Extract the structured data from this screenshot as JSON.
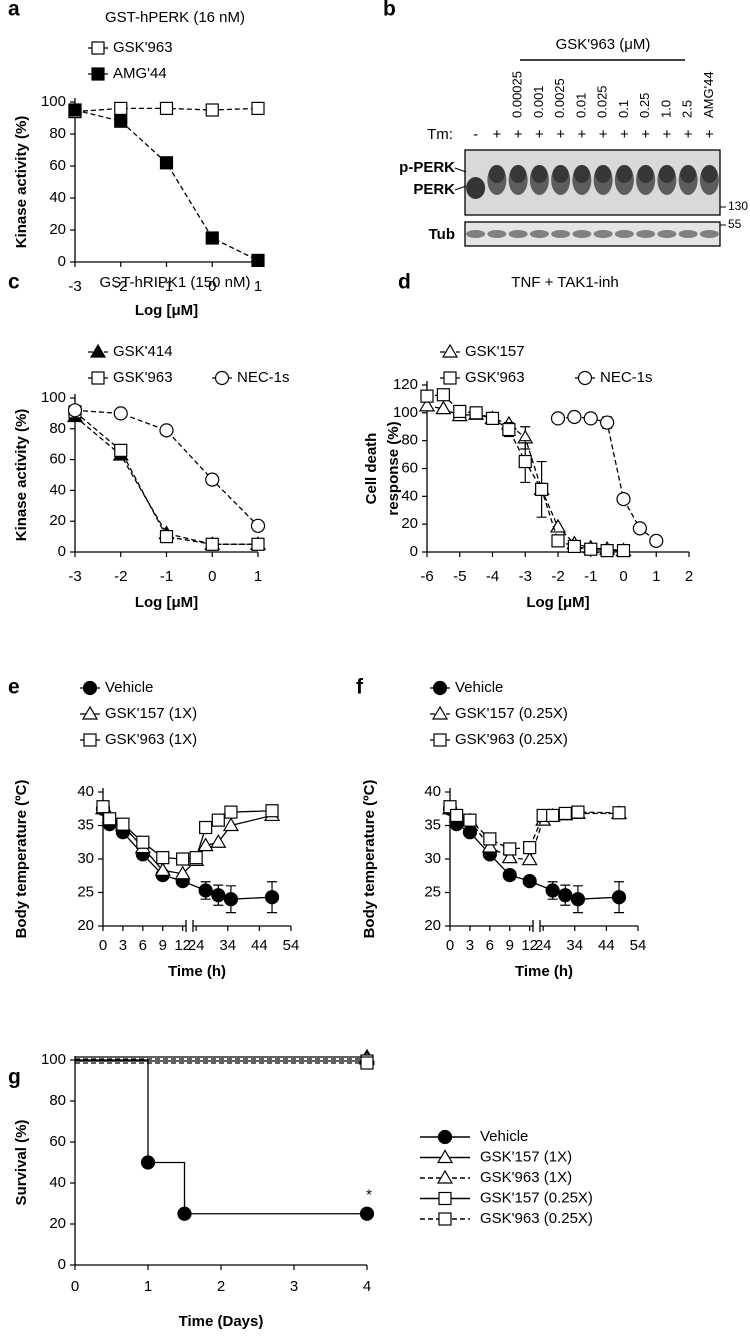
{
  "chart_data": [
    {
      "type": "line",
      "panel": "a",
      "title": "GST-hPERK (16 nM)",
      "xlabel": "Log [μM]",
      "ylabel": [
        "Kinase activity (%)"
      ],
      "xlim": [
        -3,
        1
      ],
      "xticks": [
        -3,
        -2,
        -1,
        0,
        1
      ],
      "ylim": [
        0,
        100
      ],
      "yticks": [
        0,
        20,
        40,
        60,
        80,
        100
      ],
      "series": [
        {
          "name": "GSK'963",
          "marker": "square-open",
          "dash": true,
          "color": "#000000",
          "x": [
            -3,
            -2,
            -1,
            0,
            1
          ],
          "values": [
            94,
            96,
            96,
            95,
            96
          ]
        },
        {
          "name": "AMG'44",
          "marker": "square-filled",
          "dash": true,
          "color": "#000000",
          "x": [
            -3,
            -2,
            -1,
            0,
            1
          ],
          "values": [
            95,
            88,
            62,
            15,
            1
          ]
        }
      ]
    },
    {
      "type": "line",
      "panel": "c",
      "title": "GST-hRIPK1 (150 nM)",
      "xlabel": "Log [μM]",
      "ylabel": [
        "Kinase activity (%)"
      ],
      "xlim": [
        -3,
        1
      ],
      "xticks": [
        -3,
        -2,
        -1,
        0,
        1
      ],
      "ylim": [
        0,
        100
      ],
      "yticks": [
        0,
        20,
        40,
        60,
        80,
        100
      ],
      "series": [
        {
          "name": "GSK'414",
          "marker": "triangle-filled",
          "dash": true,
          "color": "#000000",
          "x": [
            -3,
            -2,
            -1,
            0,
            1
          ],
          "values": [
            88,
            63,
            12,
            5,
            5
          ]
        },
        {
          "name": "GSK'963",
          "marker": "square-open",
          "dash": true,
          "color": "#000000",
          "x": [
            -3,
            -2,
            -1,
            0,
            1
          ],
          "values": [
            91,
            66,
            10,
            5,
            5
          ]
        },
        {
          "name": "NEC-1s",
          "marker": "circle-open",
          "dash": true,
          "color": "#000000",
          "x": [
            -3,
            -2,
            -1,
            0,
            1
          ],
          "values": [
            92,
            90,
            79,
            47,
            17
          ]
        }
      ]
    },
    {
      "type": "line",
      "panel": "d",
      "title": "TNF + TAK1-inh",
      "xlabel": "Log [μM]",
      "ylabel": [
        "Cell death",
        "response (%)"
      ],
      "xlim": [
        -6,
        2
      ],
      "xticks": [
        -6,
        -5,
        -4,
        -3,
        -2,
        -1,
        0,
        1,
        2
      ],
      "ylim": [
        0,
        120
      ],
      "yticks": [
        0,
        20,
        40,
        60,
        80,
        100,
        120
      ],
      "series": [
        {
          "name": "GSK'157",
          "marker": "triangle-open",
          "dash": true,
          "color": "#000000",
          "x": [
            -6,
            -5.5,
            -5,
            -4.5,
            -4,
            -3.5,
            -3,
            -2.5,
            -2,
            -1.5,
            -1,
            -0.5,
            0
          ],
          "values": [
            105,
            103,
            98,
            99,
            96,
            92,
            82,
            45,
            18,
            6,
            3,
            2,
            1
          ],
          "errors": [
            null,
            null,
            null,
            null,
            null,
            null,
            8,
            null,
            null,
            null,
            null,
            null,
            null
          ]
        },
        {
          "name": "GSK'963",
          "marker": "square-open",
          "dash": true,
          "color": "#000000",
          "x": [
            -6,
            -5.5,
            -5,
            -4.5,
            -4,
            -3.5,
            -3,
            -2.5,
            -2,
            -1.5,
            -1,
            -0.5,
            0
          ],
          "values": [
            112,
            113,
            101,
            100,
            96,
            88,
            65,
            45,
            8,
            4,
            2,
            1,
            1
          ],
          "errors": [
            null,
            null,
            null,
            null,
            null,
            5,
            15,
            20,
            null,
            null,
            null,
            null,
            null
          ]
        },
        {
          "name": "NEC-1s",
          "marker": "circle-open",
          "dash": true,
          "color": "#000000",
          "x": [
            -2,
            -1.5,
            -1,
            -0.5,
            0,
            0.5,
            1
          ],
          "values": [
            96,
            97,
            96,
            93,
            38,
            17,
            8
          ],
          "errors": [
            null,
            null,
            null,
            4,
            null,
            null,
            null
          ]
        }
      ]
    },
    {
      "type": "line",
      "panel": "e",
      "xlabel": "Time (h)",
      "ylabel": [
        "Body temperature (ºC)"
      ],
      "xlim": [
        0,
        54
      ],
      "xbreak": [
        12.5,
        23
      ],
      "xticks": [
        0,
        3,
        6,
        9,
        12,
        24,
        34,
        44,
        54
      ],
      "ylim": [
        20,
        40
      ],
      "yticks": [
        20,
        25,
        30,
        35,
        40
      ],
      "series": [
        {
          "name": "Vehicle",
          "marker": "circle-filled",
          "dash": false,
          "color": "#000000",
          "x": [
            0,
            1,
            3,
            6,
            9,
            12,
            27,
            31,
            35,
            48
          ],
          "values": [
            37.5,
            35.2,
            34,
            30.7,
            27.6,
            26.7,
            25.3,
            24.6,
            24,
            24.3
          ],
          "errors": [
            null,
            null,
            0.7,
            null,
            null,
            null,
            1.3,
            1.5,
            2,
            2.3
          ]
        },
        {
          "name": "GSK'157 (1X)",
          "marker": "triangle-open",
          "dash": false,
          "color": "#000000",
          "x": [
            0,
            1,
            3,
            6,
            9,
            12,
            24,
            27,
            31,
            35,
            48
          ],
          "values": [
            37.5,
            36.2,
            35,
            31.7,
            28.3,
            27.8,
            29.8,
            32,
            32.5,
            35,
            36.5
          ]
        },
        {
          "name": "GSK'963 (1X)",
          "marker": "square-open",
          "dash": false,
          "color": "#000000",
          "x": [
            0,
            1,
            3,
            6,
            9,
            12,
            24,
            27,
            31,
            35,
            48
          ],
          "values": [
            37.8,
            36,
            35.2,
            32.5,
            30.2,
            30,
            30.2,
            34.7,
            35.8,
            37,
            37.2
          ]
        }
      ]
    },
    {
      "type": "line",
      "panel": "f",
      "xlabel": "Time (h)",
      "ylabel": [
        "Body temperature (ºC)"
      ],
      "xlim": [
        0,
        54
      ],
      "xbreak": [
        12.5,
        23
      ],
      "xticks": [
        0,
        3,
        6,
        9,
        12,
        24,
        34,
        44,
        54
      ],
      "ylim": [
        20,
        40
      ],
      "yticks": [
        20,
        25,
        30,
        35,
        40
      ],
      "series": [
        {
          "name": "Vehicle",
          "marker": "circle-filled",
          "dash": false,
          "color": "#000000",
          "x": [
            0,
            1,
            3,
            6,
            9,
            12,
            27,
            31,
            35,
            48
          ],
          "values": [
            37.5,
            35.2,
            34,
            30.7,
            27.6,
            26.7,
            25.3,
            24.6,
            24,
            24.3
          ],
          "errors": [
            null,
            null,
            0.7,
            null,
            null,
            null,
            1.3,
            1.5,
            2,
            2.3
          ]
        },
        {
          "name": "GSK'157 (0.25X)",
          "marker": "triangle-open",
          "dash": true,
          "color": "#000000",
          "x": [
            0,
            1,
            3,
            6,
            9,
            12,
            24,
            27,
            31,
            35,
            48
          ],
          "values": [
            37.5,
            36.3,
            35.7,
            31.8,
            30.2,
            29.9,
            35.8,
            36.4,
            36.6,
            36.8,
            36.8
          ]
        },
        {
          "name": "GSK'963 (0.25X)",
          "marker": "square-open",
          "dash": true,
          "color": "#000000",
          "x": [
            0,
            1,
            3,
            6,
            9,
            12,
            24,
            27,
            31,
            35,
            48
          ],
          "values": [
            37.8,
            36.5,
            35.8,
            33,
            31.5,
            31.7,
            36.5,
            36.5,
            36.8,
            37,
            36.9
          ]
        }
      ]
    },
    {
      "type": "step",
      "panel": "g",
      "xlabel": "Time (Days)",
      "ylabel": [
        "Survival (%)"
      ],
      "annotation": "*",
      "xlim": [
        0,
        4
      ],
      "xticks": [
        0,
        1,
        2,
        3,
        4
      ],
      "ylim": [
        0,
        100
      ],
      "yticks": [
        0,
        20,
        40,
        60,
        80,
        100
      ],
      "series": [
        {
          "name": "Vehicle",
          "marker": "circle-filled",
          "dash": false,
          "color": "#000000",
          "x": [
            0,
            1,
            1.5,
            4
          ],
          "values": [
            100,
            50,
            25,
            25
          ]
        },
        {
          "name": "GSK'157 (1X)",
          "marker": "triangle-open",
          "dash": false,
          "color": "#000000",
          "x": [
            0,
            4
          ],
          "values": [
            100,
            100
          ]
        },
        {
          "name": "GSK'963 (1X)",
          "marker": "triangle-open",
          "dash": true,
          "color": "#000000",
          "x": [
            0,
            4
          ],
          "values": [
            100,
            100
          ]
        },
        {
          "name": "GSK'157 (0.25X)",
          "marker": "square-open",
          "dash": false,
          "color": "#000000",
          "x": [
            0,
            4
          ],
          "values": [
            100,
            100
          ]
        },
        {
          "name": "GSK'963 (0.25X)",
          "marker": "square-open",
          "dash": true,
          "color": "#000000",
          "x": [
            0,
            4
          ],
          "values": [
            100,
            100
          ]
        }
      ]
    }
  ],
  "blot": {
    "panel": "b",
    "header": "GSK'963 (μM)",
    "tm_label": "Tm:",
    "tm": [
      "-",
      "+",
      "+",
      "+",
      "+",
      "+",
      "+",
      "+",
      "+",
      "+",
      "+",
      "+"
    ],
    "lanes": [
      "0.00025",
      "0.001",
      "0.0025",
      "0.01",
      "0.025",
      "0.1",
      "0.25",
      "1.0",
      "2.5",
      "AMG'44"
    ],
    "bands": [
      "p-PERK",
      "PERK",
      "Tub"
    ],
    "markers": [
      "130",
      "55"
    ]
  }
}
